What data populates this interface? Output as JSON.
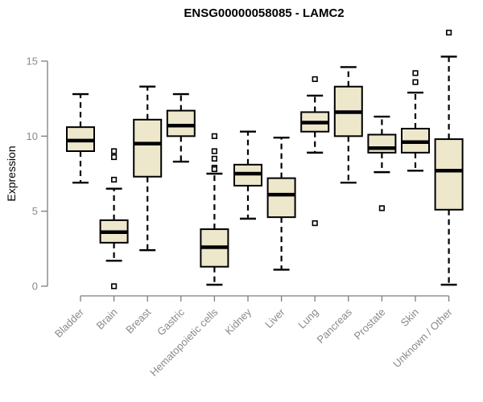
{
  "chart_data": {
    "type": "box",
    "title": "ENSG00000058085 - LAMC2",
    "xlabel": "",
    "ylabel": "Expression",
    "ylim": [
      0,
      15
    ],
    "yticks": [
      0,
      5,
      10,
      15
    ],
    "grid": false,
    "legend": null,
    "categories": [
      "Bladder",
      "Brain",
      "Breast",
      "Gastric",
      "Hematopoietic cells",
      "Kidney",
      "Liver",
      "Lung",
      "Pancreas",
      "Prostate",
      "Skin",
      "Unknown / Other"
    ],
    "boxes": [
      {
        "category": "Bladder",
        "whisker_low": 6.9,
        "q1": 9.0,
        "median": 9.7,
        "q3": 10.6,
        "whisker_high": 12.8,
        "outliers": []
      },
      {
        "category": "Brain",
        "whisker_low": 1.7,
        "q1": 2.9,
        "median": 3.6,
        "q3": 4.4,
        "whisker_high": 6.5,
        "outliers": [
          9.0,
          8.6,
          7.1,
          0.0
        ]
      },
      {
        "category": "Breast",
        "whisker_low": 2.4,
        "q1": 7.3,
        "median": 9.5,
        "q3": 11.1,
        "whisker_high": 13.3,
        "outliers": []
      },
      {
        "category": "Gastric",
        "whisker_low": 8.3,
        "q1": 10.0,
        "median": 10.7,
        "q3": 11.7,
        "whisker_high": 12.8,
        "outliers": []
      },
      {
        "category": "Hematopoietic cells",
        "whisker_low": 0.1,
        "q1": 1.3,
        "median": 2.6,
        "q3": 3.8,
        "whisker_high": 7.5,
        "outliers": [
          10.0,
          9.0,
          8.5,
          7.9,
          7.8
        ]
      },
      {
        "category": "Kidney",
        "whisker_low": 4.5,
        "q1": 6.7,
        "median": 7.5,
        "q3": 8.1,
        "whisker_high": 10.3,
        "outliers": []
      },
      {
        "category": "Liver",
        "whisker_low": 1.1,
        "q1": 4.6,
        "median": 6.1,
        "q3": 7.2,
        "whisker_high": 9.9,
        "outliers": []
      },
      {
        "category": "Lung",
        "whisker_low": 8.9,
        "q1": 10.3,
        "median": 10.9,
        "q3": 11.6,
        "whisker_high": 12.7,
        "outliers": [
          13.8,
          4.2
        ]
      },
      {
        "category": "Pancreas",
        "whisker_low": 6.9,
        "q1": 10.0,
        "median": 11.6,
        "q3": 13.3,
        "whisker_high": 14.6,
        "outliers": []
      },
      {
        "category": "Prostate",
        "whisker_low": 7.6,
        "q1": 8.9,
        "median": 9.2,
        "q3": 10.1,
        "whisker_high": 11.3,
        "outliers": [
          5.2
        ]
      },
      {
        "category": "Skin",
        "whisker_low": 7.7,
        "q1": 8.9,
        "median": 9.6,
        "q3": 10.5,
        "whisker_high": 12.9,
        "outliers": [
          14.2,
          13.6
        ]
      },
      {
        "category": "Unknown / Other",
        "whisker_low": 0.1,
        "q1": 5.1,
        "median": 7.7,
        "q3": 9.8,
        "whisker_high": 15.3,
        "outliers": [
          16.9
        ]
      }
    ]
  },
  "style": {
    "box_fill": "#EDE7CC",
    "box_stroke": "#000000",
    "median_color": "#000000",
    "whisker_color": "#000000",
    "outlier_stroke": "#000000",
    "outlier_fill": "#ffffff",
    "axis_color": "#7E7E7E",
    "tick_label_color": "#8A8A8A",
    "title_color": "#000000",
    "background": "#FFFFFF"
  }
}
